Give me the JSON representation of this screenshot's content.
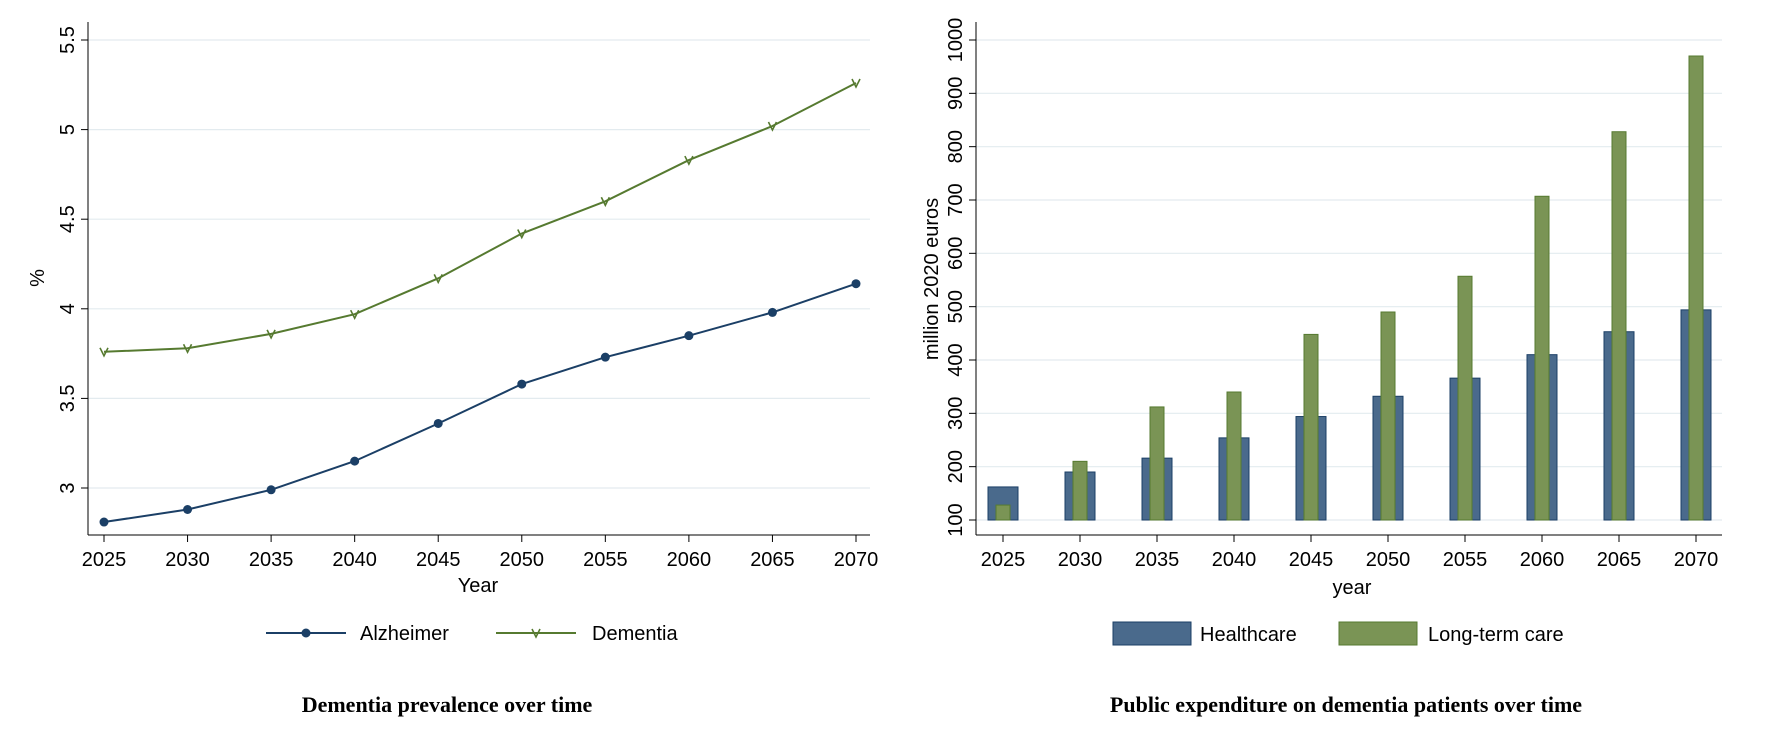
{
  "chart_data": [
    {
      "type": "line",
      "title": "Dementia prevalence over time",
      "xlabel": "Year",
      "ylabel": "%",
      "x": [
        2025,
        2030,
        2035,
        2040,
        2045,
        2050,
        2055,
        2060,
        2065,
        2070
      ],
      "xlim": [
        2025,
        2070
      ],
      "ylim": [
        2.8,
        5.5
      ],
      "yticks": [
        "3",
        "3.5",
        "4",
        "4.5",
        "5",
        "5.5"
      ],
      "xticks": [
        "2025",
        "2030",
        "2035",
        "2040",
        "2045",
        "2050",
        "2055",
        "2060",
        "2065",
        "2070"
      ],
      "grid": true,
      "legend": "bottom",
      "series": [
        {
          "name": "Alzheimer",
          "values": [
            2.81,
            2.88,
            2.99,
            3.15,
            3.36,
            3.58,
            3.73,
            3.85,
            3.98,
            4.14
          ],
          "color": "#1b3f66",
          "marker": "circle"
        },
        {
          "name": "Dementia",
          "values": [
            3.76,
            3.78,
            3.86,
            3.97,
            4.17,
            4.42,
            4.6,
            4.83,
            5.02,
            5.26
          ],
          "color": "#567a30",
          "marker": "v"
        }
      ]
    },
    {
      "type": "bar",
      "title": "Public expenditure on dementia patients over time",
      "xlabel": "year",
      "ylabel": "million 2020 euros",
      "categories": [
        "2025",
        "2030",
        "2035",
        "2040",
        "2045",
        "2050",
        "2055",
        "2060",
        "2065",
        "2070"
      ],
      "ylim": [
        100,
        1000
      ],
      "yticks": [
        "100",
        "200",
        "300",
        "400",
        "500",
        "600",
        "700",
        "800",
        "900",
        "1000"
      ],
      "grid": true,
      "legend": "bottom",
      "series": [
        {
          "name": "Healthcare",
          "values": [
            162,
            190,
            216,
            254,
            294,
            332,
            366,
            410,
            453,
            494
          ],
          "color": "#4a6a8c"
        },
        {
          "name": "Long-term care",
          "values": [
            128,
            210,
            312,
            340,
            448,
            490,
            557,
            707,
            828,
            970
          ],
          "color": "#7a9455"
        }
      ]
    }
  ]
}
